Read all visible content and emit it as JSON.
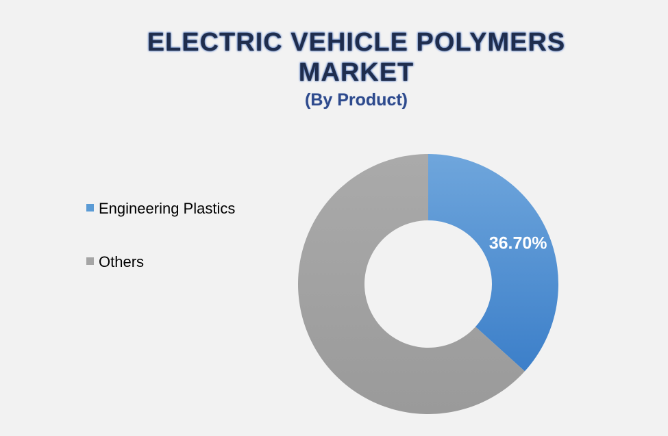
{
  "chart_data": {
    "type": "pie",
    "variant": "donut",
    "title": "ELECTRIC VEHICLE POLYMERS\nMARKET",
    "subtitle": "(By Product)",
    "categories": [
      "Engineering Plastics",
      "Others"
    ],
    "values": [
      36.7,
      63.3
    ],
    "data_labels": [
      "36.70%",
      ""
    ],
    "colors": [
      "#5b9bd5",
      "#a5a5a5"
    ],
    "legend_position": "left",
    "start_angle_degrees": 0,
    "direction": "clockwise"
  }
}
